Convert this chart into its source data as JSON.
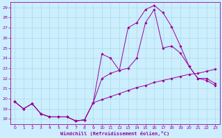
{
  "xlabel": "Windchill (Refroidissement éolien,°C)",
  "bg_color": "#cceeff",
  "line_color": "#990099",
  "grid_color": "#aadddd",
  "xlim": [
    -0.5,
    23.5
  ],
  "ylim": [
    17.5,
    29.5
  ],
  "yticks": [
    18,
    19,
    20,
    21,
    22,
    23,
    24,
    25,
    26,
    27,
    28,
    29
  ],
  "xticks": [
    0,
    1,
    2,
    3,
    4,
    5,
    6,
    7,
    8,
    9,
    10,
    11,
    12,
    13,
    14,
    15,
    16,
    17,
    18,
    19,
    20,
    21,
    22,
    23
  ],
  "line1_x": [
    0,
    1,
    2,
    3,
    4,
    5,
    6,
    7,
    8,
    9,
    10,
    11,
    12,
    13,
    14,
    15,
    16,
    17,
    18,
    19,
    20,
    21,
    22,
    23
  ],
  "line1_y": [
    19.7,
    19.0,
    19.5,
    18.5,
    18.2,
    18.2,
    18.2,
    17.8,
    17.9,
    19.6,
    24.4,
    24.0,
    22.8,
    27.0,
    27.5,
    28.8,
    29.2,
    28.5,
    27.1,
    25.2,
    23.2,
    22.0,
    22.0,
    21.5
  ],
  "line2_x": [
    0,
    1,
    2,
    3,
    4,
    5,
    6,
    7,
    8,
    9,
    10,
    11,
    12,
    13,
    14,
    15,
    16,
    17,
    18,
    19,
    20,
    21,
    22,
    23
  ],
  "line2_y": [
    19.7,
    19.0,
    19.5,
    18.5,
    18.2,
    18.2,
    18.2,
    17.8,
    17.9,
    19.6,
    19.9,
    20.2,
    20.5,
    20.8,
    21.1,
    21.3,
    21.6,
    21.8,
    22.0,
    22.2,
    22.4,
    22.5,
    22.7,
    22.9
  ],
  "line3_x": [
    0,
    1,
    2,
    3,
    4,
    5,
    6,
    7,
    8,
    9,
    10,
    11,
    12,
    13,
    14,
    15,
    16,
    17,
    18,
    19,
    20,
    21,
    22,
    23
  ],
  "line3_y": [
    19.7,
    19.0,
    19.5,
    18.5,
    18.2,
    18.2,
    18.2,
    17.8,
    17.9,
    19.6,
    22.0,
    22.5,
    22.8,
    23.0,
    24.0,
    27.5,
    28.8,
    25.0,
    25.2,
    24.5,
    23.2,
    22.0,
    21.8,
    21.3
  ]
}
